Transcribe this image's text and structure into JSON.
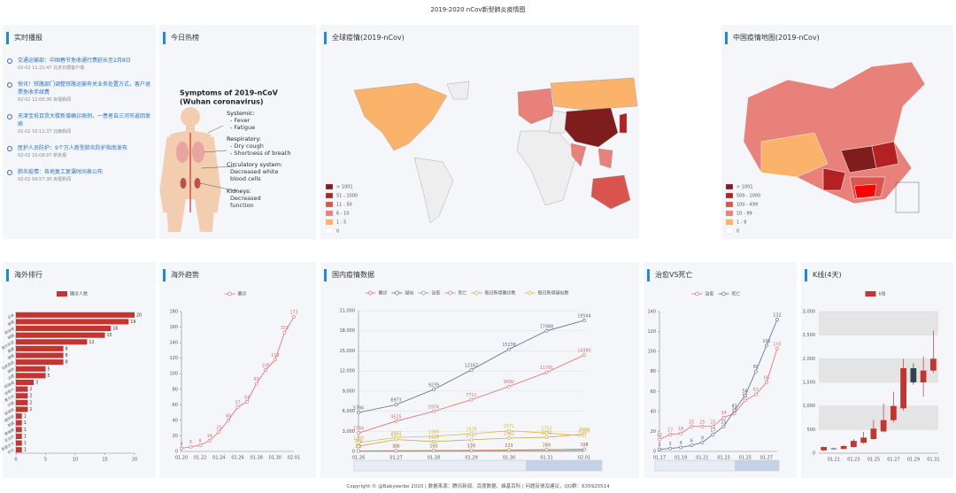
{
  "header": {
    "title": "2019-2020 nCov新型肺炎疫情图"
  },
  "news": {
    "title": "实时播报",
    "items": [
      {
        "text": "交通运输部：中国春节免收通行费延长至2月8日",
        "meta": "02-02 11:21:47 北京日报客户端"
      },
      {
        "text": "快讯！铁路部门调整铁路运输有关业务处置方式，客户退票免收手续费",
        "meta": "02-02 11:05:30 央视新闻"
      },
      {
        "text": "天津宝坻百货大楼新增确诊病例，一患者自三河市返回发病",
        "meta": "02-02 10:11:37 北晚新闻"
      },
      {
        "text": "医护人员防护：9个万人新型肺炎防护指南发布",
        "meta": "02-02 10:08:07 新京报"
      },
      {
        "text": "肺炎疫情：各地复工复课时间表公布",
        "meta": "02-02 09:57:30 央视新闻"
      }
    ]
  },
  "hot": {
    "title": "今日热榜",
    "heading": [
      "Symptoms of 2019-nCoV",
      "(Wuhan coronavirus)"
    ],
    "sections": [
      {
        "title": "Systemic:",
        "lines": [
          "- Fever",
          "- Fatigue"
        ]
      },
      {
        "title": "Respiratory:",
        "lines": [
          "- Dry cough",
          "- Shortness of breath"
        ]
      },
      {
        "title": "Circulatory system:",
        "lines": [
          "Decreased white",
          "blood cells"
        ]
      },
      {
        "title": "Kidneys:",
        "lines": [
          "Decreased",
          "function"
        ]
      }
    ]
  },
  "global_map": {
    "title": "全球疫情(2019-nCov)",
    "legend": [
      {
        "label": "> 1001",
        "color": "#7f1d1d"
      },
      {
        "label": "51 - 1000",
        "color": "#b22222"
      },
      {
        "label": "11 - 50",
        "color": "#d9534f"
      },
      {
        "label": "6 - 10",
        "color": "#e8817a"
      },
      {
        "label": "1 - 5",
        "color": "#fbb26a"
      },
      {
        "label": "0",
        "color": "#ffffff"
      }
    ]
  },
  "china_map": {
    "title": "中国疫情地图(2019-nCov)",
    "legend": [
      {
        "label": "> 1001",
        "color": "#7f1d1d"
      },
      {
        "label": "500 - 1000",
        "color": "#b22222"
      },
      {
        "label": "100 - 499",
        "color": "#d9534f"
      },
      {
        "label": "10 - 99",
        "color": "#e8817a"
      },
      {
        "label": "1 - 9",
        "color": "#fbb26a"
      },
      {
        "label": "0",
        "color": "#ffffff"
      }
    ]
  },
  "chart_data": [
    {
      "type": "bar",
      "orientation": "horizontal",
      "title": "海外排行",
      "categories": [
        "日本",
        "泰国",
        "新加坡",
        "韩国",
        "澳大利亚",
        "美国",
        "德国",
        "马来西亚",
        "越南",
        "法国",
        "阿联酋",
        "加拿大",
        "意大利",
        "印度",
        "菲律宾",
        "俄罗斯",
        "英国",
        "柬埔寨",
        "尼泊尔",
        "斯里兰卡",
        "芬兰"
      ],
      "series": [
        {
          "name": "确诊人数",
          "color": "#c23531",
          "values": [
            20,
            19,
            16,
            15,
            12,
            8,
            8,
            8,
            5,
            5,
            3,
            2,
            2,
            2,
            2,
            1,
            1,
            1,
            1,
            1,
            1
          ]
        }
      ],
      "xlim": [
        0,
        20
      ],
      "xticks": [
        0,
        5,
        10,
        15,
        20
      ]
    },
    {
      "type": "line",
      "title": "海外趋势",
      "categories": [
        "01.20",
        null,
        "01.22",
        null,
        "01.24",
        null,
        "01.26",
        null,
        "01.28",
        null,
        "01.30",
        null,
        "02.01"
      ],
      "series": [
        {
          "name": "确诊",
          "color": "#e06c6c",
          "values": [
            4,
            6,
            8,
            14,
            25,
            40,
            57,
            64,
            87,
            105,
            118,
            153,
            173
          ]
        }
      ],
      "ylim": [
        0,
        180
      ],
      "yticks": [
        0,
        20,
        40,
        60,
        80,
        100,
        120,
        140,
        160,
        180
      ],
      "grid": false
    },
    {
      "type": "line",
      "title": "国内疫情数据",
      "categories": [
        "01.26",
        "01.27",
        "01.28",
        "01.29",
        "01.30",
        "01.31",
        "02.01"
      ],
      "series": [
        {
          "name": "确诊",
          "color": "#e06c6c",
          "values": [
            2744,
            4515,
            5974,
            7711,
            9692,
            11791,
            14380
          ]
        },
        {
          "name": "疑似",
          "color": "#5a6a7e",
          "values": [
            5794,
            6973,
            9239,
            12167,
            15238,
            17988,
            19544
          ]
        },
        {
          "name": "治愈",
          "color": "#6aa57a",
          "area": true,
          "values": [
            51,
            60,
            103,
            124,
            171,
            243,
            328
          ]
        },
        {
          "name": "死亡",
          "color": "#d48265",
          "values": [
            80,
            106,
            132,
            170,
            213,
            259,
            304
          ]
        },
        {
          "name": "每日新增确诊数",
          "color": "#c9a74a",
          "values": [
            769,
            1771,
            1459,
            1737,
            1982,
            2102,
            2590
          ]
        },
        {
          "name": "每日新增疑似数",
          "color": "#e0b93a",
          "values": [
            1309,
            2077,
            2266,
            2628,
            3071,
            2750,
            2309
          ]
        }
      ],
      "ylim": [
        0,
        21000
      ],
      "yticks": [
        0,
        {
          "value": 3000,
          "label": "3,000"
        },
        {
          "value": 6000,
          "label": "6,000"
        },
        {
          "value": 9000,
          "label": "9,000"
        },
        {
          "value": 12000,
          "label": "12,000"
        },
        {
          "value": 15000,
          "label": "15,000"
        },
        {
          "value": 18000,
          "label": "18,000"
        },
        {
          "value": 21000,
          "label": "21,000"
        }
      ],
      "grid": true
    },
    {
      "type": "line",
      "title": "治愈VS死亡",
      "categories": [
        "01.17",
        null,
        "01.19",
        null,
        "01.21",
        null,
        "01.23",
        null,
        "01.25",
        null,
        "01.27",
        null
      ],
      "series": [
        {
          "name": "治愈",
          "color": "#e06c6c",
          "values": [
            12,
            17,
            18,
            25,
            25,
            25,
            34,
            38,
            51,
            57,
            69,
            103
          ]
        },
        {
          "name": "死亡",
          "color": "#5a6a7e",
          "values": [
            2,
            3,
            4,
            6,
            9,
            17,
            25,
            41,
            56,
            80,
            106,
            132
          ]
        }
      ],
      "ylim": [
        0,
        140
      ],
      "yticks": [
        0,
        20,
        40,
        60,
        80,
        100,
        120,
        140
      ],
      "grid": false
    },
    {
      "type": "candlestick",
      "title": "K线(4天)",
      "categories": [
        null,
        "01.21",
        null,
        "01.23",
        null,
        "01.25",
        null,
        "01.27",
        null,
        "01.29",
        null,
        "01.31"
      ],
      "series": [
        {
          "name": "k线",
          "up_color": "#c23531",
          "down_color": "#2f4554",
          "values": [
            [
              60,
              130,
              50,
              140
            ],
            [
              100,
              90,
              80,
              120
            ],
            [
              90,
              150,
              80,
              170
            ],
            [
              130,
              260,
              120,
              300
            ],
            [
              220,
              330,
              200,
              450
            ],
            [
              300,
              520,
              280,
              700
            ],
            [
              460,
              700,
              440,
              1050
            ],
            [
              700,
              1000,
              650,
              1300
            ],
            [
              950,
              1800,
              900,
              2000
            ],
            [
              1800,
              1500,
              1450,
              1900
            ],
            [
              1500,
              1750,
              1200,
              2050
            ],
            [
              1750,
              2000,
              1700,
              2600
            ]
          ]
        }
      ],
      "ylim": [
        0,
        3000
      ],
      "yticks": [
        0,
        500,
        {
          "value": 1000,
          "label": "1,000"
        },
        {
          "value": 1500,
          "label": "1,500"
        },
        {
          "value": 2000,
          "label": "2,000"
        },
        {
          "value": 2500,
          "label": "2,500"
        },
        {
          "value": 3000,
          "label": "3,000"
        }
      ],
      "grid": true
    }
  ],
  "footer": {
    "text": "Copyright © @Babyeerbe 2020 | 数据来源：腾讯新闻、百度数据、维基百科 | 问题反馈及建议，QQ群：635925514"
  }
}
